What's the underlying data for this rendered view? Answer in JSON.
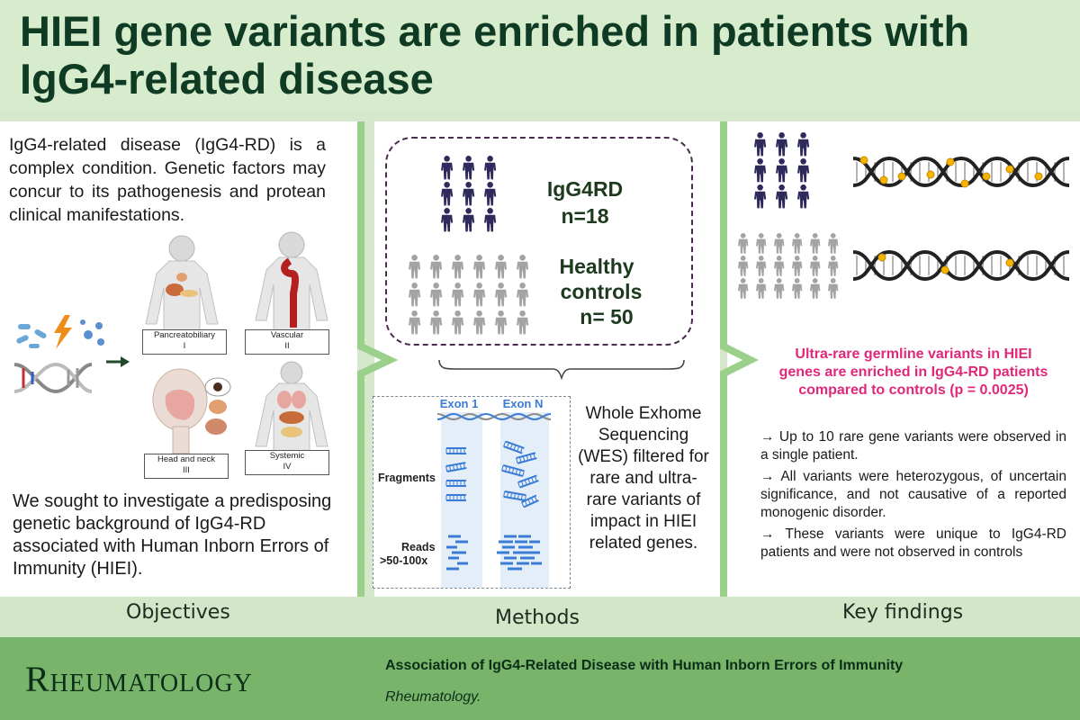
{
  "header": {
    "title": "HIEI gene variants are enriched in patients with IgG4-related disease"
  },
  "objectives": {
    "intro": "IgG4-related disease (IgG4-RD) is  a complex condition. Genetic factors may concur to its pathogenesis and protean clinical manifestations.",
    "organ_labels": [
      {
        "name": "Pancreatobiliary",
        "num": "I"
      },
      {
        "name": "Vascular",
        "num": "II"
      },
      {
        "name": "Head and neck",
        "num": "III"
      },
      {
        "name": "Systemic",
        "num": "IV"
      }
    ],
    "statement": "We sought to investigate a predisposing genetic background of IgG4-RD associated with Human Inborn Errors of Immunity (HIEI)."
  },
  "methods": {
    "patients_label": "IgG4RD",
    "patients_n": "n=18",
    "controls_label_1": "Healthy",
    "controls_label_2": "controls",
    "controls_n": "n= 50",
    "exon1": "Exon 1",
    "exonN": "Exon N",
    "fragments": "Fragments",
    "reads": "Reads",
    "reads_depth": ">50-100x",
    "wes_text": "Whole Exhome Sequencing (WES) filtered for rare and ultra-rare variants of impact in HIEI related genes."
  },
  "findings": {
    "headline": "Ultra-rare germline variants in HIEI genes are enriched in IgG4-RD patients compared to controls (p = 0.0025)",
    "bullets": [
      "→  Up to 10 rare gene variants were observed in a single patient.",
      "→  All variants were heterozygous, of uncertain significance, and not causative of a reported monogenic disorder.",
      "→ These variants were unique to IgG4-RD patients and were not observed in controls"
    ]
  },
  "section_labels": {
    "objectives": "Objectives",
    "methods": "Methods",
    "key_findings": "Key findings"
  },
  "footer": {
    "journal": "Rheumatology",
    "article_title": "Association of IgG4-Related Disease with Human Inborn Errors of Immunity",
    "article_journal": "Rheumatology."
  },
  "colors": {
    "dark_green": "#0f3a23",
    "accent_pink": "#e0287a",
    "footer_green": "#78b56a",
    "patient_figure": "#2e2a5c",
    "control_figure": "#a3a3a3"
  }
}
